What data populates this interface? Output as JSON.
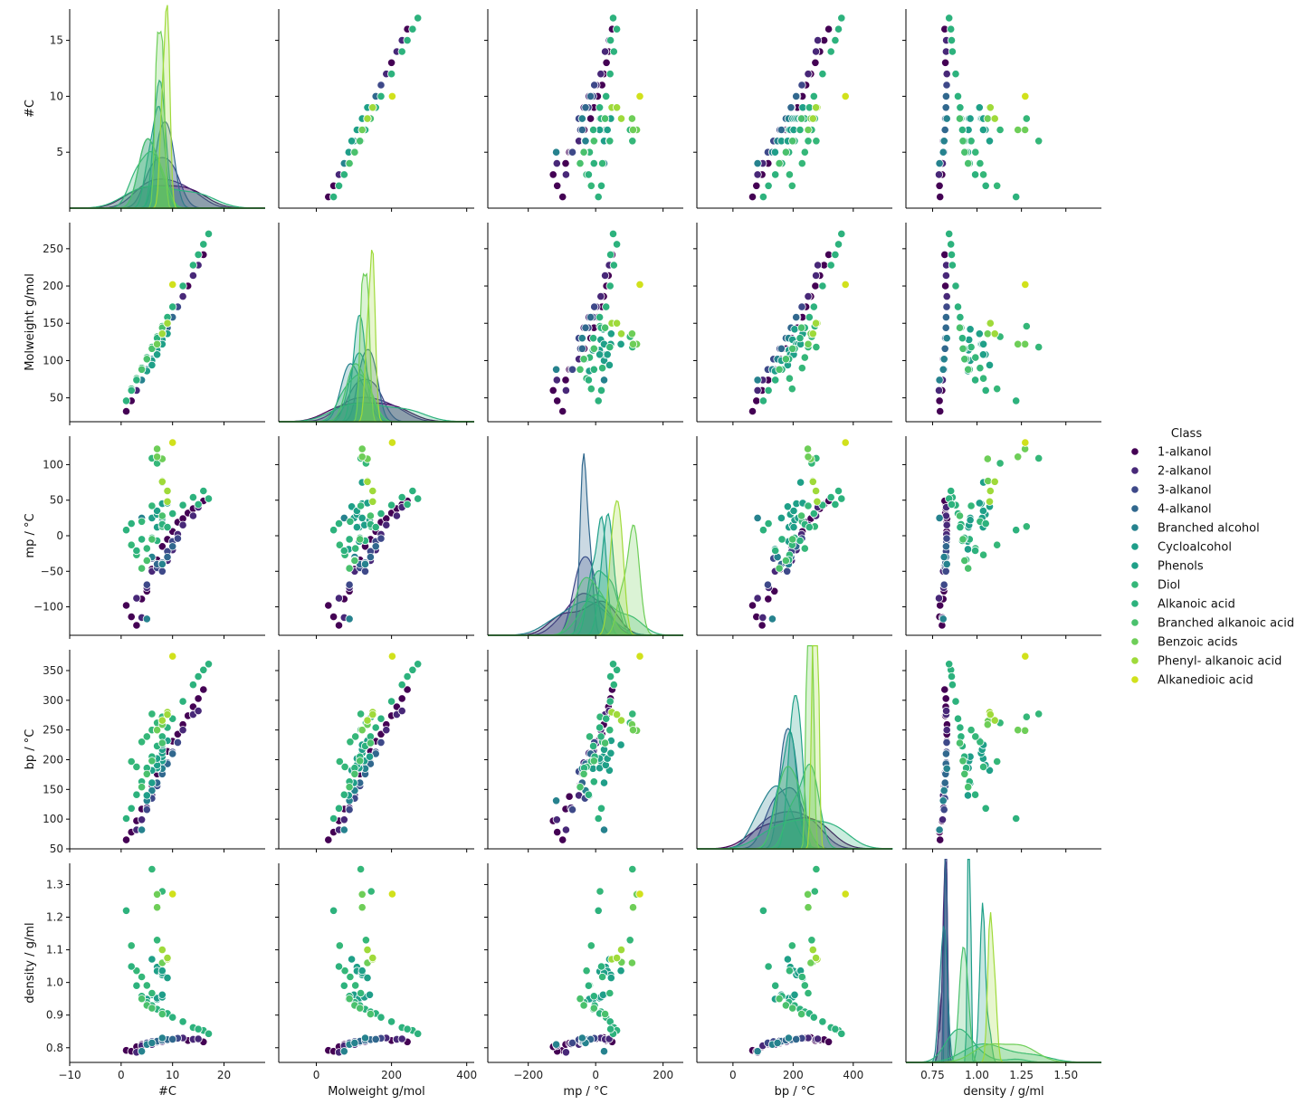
{
  "chart_data": {
    "type": "scatter",
    "title": "",
    "variables": [
      "#C",
      "Molweight g/mol",
      "mp / °C",
      "bp / °C",
      "density / g/ml"
    ],
    "axis_limits": {
      "#C": [
        0,
        17.8
      ],
      "Molweight g/mol": [
        18,
        285
      ],
      "mp / °C": [
        -140,
        140
      ],
      "bp / °C": [
        50,
        385
      ],
      "density / g/ml": [
        0.755,
        1.365
      ]
    },
    "x_axis_limits": {
      "#C": [
        -10,
        28
      ],
      "Molweight g/mol": [
        -100,
        420
      ],
      "mp / °C": [
        -320,
        260
      ],
      "bp / °C": [
        -120,
        530
      ],
      "density / g/ml": [
        0.6,
        1.7
      ]
    },
    "x_ticks": {
      "#C": [
        -10,
        0,
        10,
        20
      ],
      "Molweight g/mol": [
        0,
        200,
        400
      ],
      "mp / °C": [
        -200,
        0,
        200
      ],
      "bp / °C": [
        0,
        200,
        400
      ],
      "density / g/ml": [
        0.75,
        1.0,
        1.25,
        1.5
      ]
    },
    "x_tick_labels": {
      "#C": [
        "−10",
        "0",
        "10",
        "20"
      ],
      "Molweight g/mol": [
        "0",
        "200",
        "400"
      ],
      "mp / °C": [
        "−200",
        "0",
        "200"
      ],
      "bp / °C": [
        "0",
        "200",
        "400"
      ],
      "density / g/ml": [
        "0.75",
        "1.00",
        "1.25",
        "1.50"
      ]
    },
    "y_ticks": {
      "#C": [
        5,
        10,
        15
      ],
      "Molweight g/mol": [
        50,
        100,
        150,
        200,
        250
      ],
      "mp / °C": [
        -100,
        -50,
        0,
        50,
        100
      ],
      "bp / °C": [
        50,
        100,
        150,
        200,
        250,
        300,
        350
      ],
      "density / g/ml": [
        0.8,
        0.9,
        1.0,
        1.1,
        1.2,
        1.3
      ]
    },
    "y_tick_labels": {
      "#C": [
        "5",
        "10",
        "15"
      ],
      "Molweight g/mol": [
        "50",
        "100",
        "150",
        "200",
        "250"
      ],
      "mp / °C": [
        "−100",
        "−50",
        "0",
        "50",
        "100"
      ],
      "bp / °C": [
        "50",
        "100",
        "150",
        "200",
        "250",
        "300",
        "350"
      ],
      "density / g/ml": [
        "0.8",
        "0.9",
        "1.0",
        "1.1",
        "1.2",
        "1.3"
      ]
    },
    "kde_ylim": {
      "#C": 0.55,
      "Molweight g/mol": 0.047,
      "mp / °C": 0.033,
      "bp / °C": 0.024,
      "density / g/ml": 28
    },
    "legend": {
      "title": "Class",
      "position": "right",
      "entries": [
        "1-alkanol",
        "2-alkanol",
        "3-alkanol",
        "4-alkanol",
        "Branched alcohol",
        "Cycloalcohol",
        "Phenols",
        "Diol",
        "Alkanoic acid",
        "Branched alkanoic acid",
        "Benzoic acids",
        "Phenyl- alkanoic acid",
        "Alkanedioic acid"
      ]
    },
    "palette": [
      "#440154",
      "#482878",
      "#3e4989",
      "#31688e",
      "#26828e",
      "#1f9e89",
      "#1fa088",
      "#35b779",
      "#2db27d",
      "#4ac16d",
      "#6ece58",
      "#9fda3a",
      "#d1e11c"
    ],
    "columns": [
      "#C",
      "Molweight g/mol",
      "mp / °C",
      "bp / °C",
      "density / g/ml",
      "class_index"
    ],
    "rows": [
      [
        1,
        32,
        -98,
        65,
        0.792,
        0
      ],
      [
        2,
        46,
        -114,
        78,
        0.789,
        0
      ],
      [
        3,
        60,
        -126,
        97,
        0.803,
        0
      ],
      [
        4,
        74,
        -89,
        117,
        0.81,
        0
      ],
      [
        5,
        88,
        -78,
        138,
        0.814,
        0
      ],
      [
        6,
        102,
        -47,
        157,
        0.814,
        0
      ],
      [
        7,
        116,
        -34,
        176,
        0.822,
        0
      ],
      [
        8,
        130,
        -15,
        195,
        0.827,
        0
      ],
      [
        9,
        144,
        -5,
        214,
        0.827,
        0
      ],
      [
        10,
        158,
        6,
        231,
        0.829,
        0
      ],
      [
        11,
        172,
        19,
        243,
        0.83,
        0
      ],
      [
        12,
        186,
        24,
        259,
        0.831,
        0
      ],
      [
        13,
        200,
        32,
        274,
        0.822,
        0
      ],
      [
        14,
        214,
        38,
        289,
        0.824,
        0
      ],
      [
        15,
        228,
        44,
        303,
        0.825,
        0
      ],
      [
        16,
        242,
        49,
        318,
        0.818,
        0
      ],
      [
        3,
        60,
        -88,
        82,
        0.786,
        1
      ],
      [
        4,
        74,
        -115,
        99,
        0.806,
        1
      ],
      [
        5,
        88,
        -73,
        119,
        0.812,
        1
      ],
      [
        6,
        102,
        -50,
        140,
        0.81,
        1
      ],
      [
        7,
        116,
        -42,
        159,
        0.817,
        1
      ],
      [
        8,
        130,
        -38,
        178,
        0.819,
        1
      ],
      [
        9,
        144,
        -35,
        195,
        0.823,
        1
      ],
      [
        10,
        158,
        -20,
        211,
        0.826,
        1
      ],
      [
        11,
        172,
        2,
        228,
        0.828,
        1
      ],
      [
        12,
        186,
        15,
        250,
        0.83,
        1
      ],
      [
        14,
        214,
        28,
        276,
        0.826,
        1
      ],
      [
        15,
        228,
        40,
        282,
        0.827,
        1
      ],
      [
        5,
        88,
        -69,
        116,
        0.815,
        2
      ],
      [
        6,
        102,
        -32,
        135,
        0.819,
        2
      ],
      [
        7,
        116,
        -45,
        156,
        0.821,
        2
      ],
      [
        8,
        130,
        -50,
        180,
        0.825,
        2
      ],
      [
        9,
        144,
        -22,
        195,
        0.826,
        2
      ],
      [
        10,
        158,
        -8,
        213,
        0.828,
        2
      ],
      [
        11,
        172,
        -4,
        229,
        0.829,
        2
      ],
      [
        7,
        116,
        -40,
        161,
        0.82,
        3
      ],
      [
        8,
        130,
        -38,
        176,
        0.823,
        3
      ],
      [
        9,
        144,
        -30,
        193,
        0.825,
        3
      ],
      [
        10,
        158,
        -15,
        210,
        0.826,
        3
      ],
      [
        4,
        74,
        25,
        82,
        0.789,
        4
      ],
      [
        5,
        88,
        -117,
        131,
        0.81,
        4
      ],
      [
        6,
        102,
        -30,
        148,
        0.815,
        4
      ],
      [
        8,
        130,
        -40,
        185,
        0.83,
        4
      ],
      [
        6,
        100,
        25,
        161,
        0.962,
        5
      ],
      [
        7,
        114,
        -8,
        185,
        0.948,
        5
      ],
      [
        7,
        114,
        12,
        186,
        0.952,
        5
      ],
      [
        8,
        128,
        15,
        198,
        0.955,
        5
      ],
      [
        5,
        86,
        -19,
        140,
        0.949,
        5
      ],
      [
        8,
        142,
        22,
        205,
        0.962,
        5
      ],
      [
        6,
        94,
        41,
        182,
        1.071,
        6
      ],
      [
        7,
        108,
        30,
        191,
        1.047,
        6
      ],
      [
        7,
        108,
        12,
        202,
        1.034,
        6
      ],
      [
        7,
        108,
        35,
        202,
        1.035,
        6
      ],
      [
        8,
        122,
        45,
        211,
        1.023,
        6
      ],
      [
        8,
        122,
        25,
        217,
        1.029,
        6
      ],
      [
        8,
        122,
        75,
        225,
        1.036,
        6
      ],
      [
        9,
        136,
        46,
        232,
        1.014,
        6
      ],
      [
        2,
        62,
        -13,
        197,
        1.113,
        7
      ],
      [
        3,
        76,
        -27,
        188,
        1.036,
        7
      ],
      [
        4,
        90,
        20,
        230,
        1.017,
        7
      ],
      [
        5,
        104,
        -18,
        239,
        0.991,
        7
      ],
      [
        6,
        118,
        42,
        250,
        0.967,
        7
      ],
      [
        6,
        118,
        109,
        277,
        1.347,
        7
      ],
      [
        7,
        132,
        102,
        262,
        1.13,
        7
      ],
      [
        8,
        146,
        13,
        272,
        1.279,
        7
      ],
      [
        1,
        46,
        8,
        101,
        1.22,
        8
      ],
      [
        2,
        60,
        17,
        118,
        1.049,
        8
      ],
      [
        3,
        74,
        -21,
        141,
        0.99,
        8
      ],
      [
        4,
        88,
        -5,
        163,
        0.958,
        8
      ],
      [
        5,
        102,
        -34,
        186,
        0.939,
        8
      ],
      [
        6,
        116,
        -3,
        205,
        0.929,
        8
      ],
      [
        7,
        130,
        -7,
        223,
        0.918,
        8
      ],
      [
        8,
        144,
        16,
        239,
        0.91,
        8
      ],
      [
        9,
        158,
        12,
        254,
        0.905,
        8
      ],
      [
        10,
        172,
        31,
        269,
        0.893,
        8
      ],
      [
        12,
        200,
        43,
        298,
        0.88,
        8
      ],
      [
        14,
        228,
        54,
        326,
        0.862,
        8
      ],
      [
        16,
        256,
        63,
        351,
        0.853,
        8
      ],
      [
        17,
        270,
        52,
        361,
        0.843,
        8
      ],
      [
        15,
        242,
        44,
        340,
        0.857,
        8
      ],
      [
        4,
        88,
        -46,
        154,
        0.95,
        9
      ],
      [
        5,
        102,
        -35,
        176,
        0.93,
        9
      ],
      [
        6,
        116,
        -5,
        198,
        0.921,
        9
      ],
      [
        8,
        144,
        28,
        228,
        0.903,
        9
      ],
      [
        7,
        122,
        122,
        249,
        1.27,
        10
      ],
      [
        8,
        136,
        77,
        265,
        1.062,
        10
      ],
      [
        8,
        136,
        108,
        259,
        1.06,
        10
      ],
      [
        7,
        122,
        111,
        250,
        1.23,
        10
      ],
      [
        9,
        150,
        48,
        280,
        1.071,
        11
      ],
      [
        8,
        136,
        76,
        266,
        1.1,
        11
      ],
      [
        9,
        150,
        63,
        276,
        1.075,
        11
      ],
      [
        10,
        202,
        131,
        374,
        1.271,
        12
      ]
    ]
  }
}
